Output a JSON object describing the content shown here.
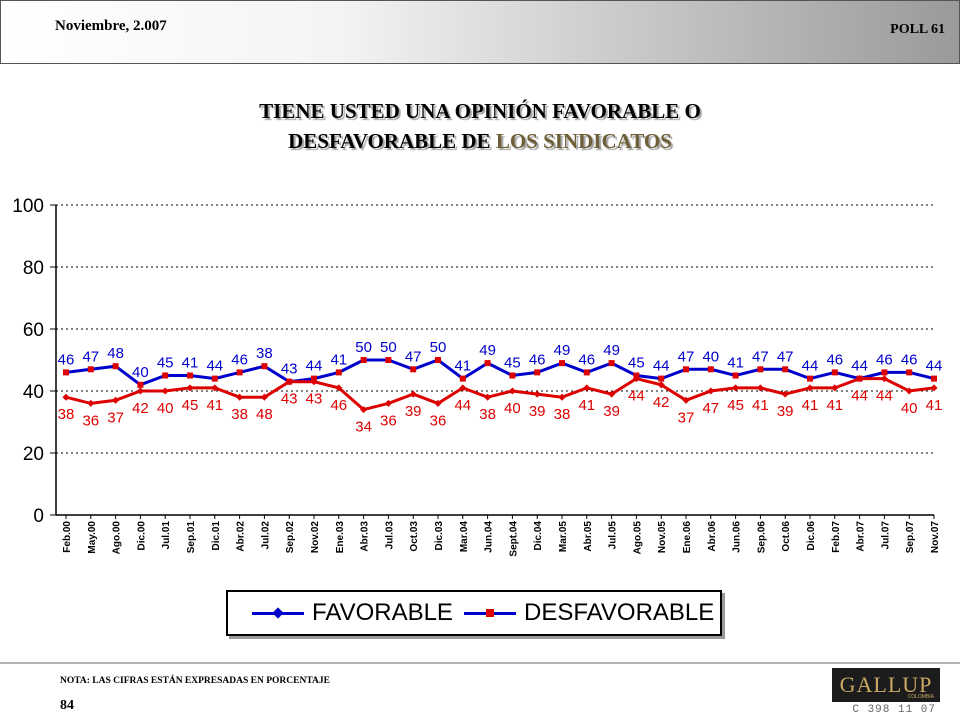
{
  "header": {
    "date": "Noviembre, 2.007",
    "poll": "POLL 61"
  },
  "title": {
    "line1": "TIENE USTED UNA OPINIÓN FAVORABLE O",
    "line2_prefix": "DESFAVORABLE DE ",
    "line2_highlight": "LOS SINDICATOS"
  },
  "chart_data": {
    "type": "line",
    "categories": [
      "Feb.00",
      "May.00",
      "Ago.00",
      "Dic.00",
      "Jul.01",
      "Sep.01",
      "Dic.01",
      "Abr.02",
      "Jul.02",
      "Sep.02",
      "Nov.02",
      "Ene.03",
      "Abr.03",
      "Jul.03",
      "Oct.03",
      "Dic.03",
      "Mar.04",
      "Jun.04",
      "Sept.04",
      "Dic.04",
      "Mar.05",
      "Abr.05",
      "Jul.05",
      "Ago.05",
      "Nov.05",
      "Ene.06",
      "Abr.06",
      "Jun.06",
      "Sep.06",
      "Oct.06",
      "Dic.06",
      "Feb.07",
      "Abr.07",
      "Jul.07",
      "Sep.07",
      "Nov.07"
    ],
    "series": [
      {
        "name": "FAVORABLE",
        "color": "#0000cc",
        "values": [
          38,
          36,
          37,
          40,
          40,
          41,
          41,
          38,
          38,
          43,
          43,
          41,
          34,
          36,
          39,
          36,
          41,
          38,
          40,
          39,
          38,
          41,
          39,
          44,
          42,
          37,
          40,
          41,
          41,
          39,
          41,
          41,
          44,
          44,
          40,
          41
        ]
      },
      {
        "name": "DESFAVORABLE",
        "color": "#dd0000",
        "values": [
          46,
          47,
          48,
          42,
          45,
          45,
          44,
          46,
          48,
          43,
          44,
          46,
          50,
          50,
          47,
          50,
          44,
          49,
          45,
          46,
          49,
          46,
          49,
          45,
          44,
          47,
          47,
          45,
          47,
          47,
          44,
          46,
          44,
          46,
          46,
          44
        ]
      }
    ],
    "ylim": [
      0,
      100
    ],
    "yticks": [
      0,
      20,
      40,
      60,
      80,
      100
    ],
    "grid": true,
    "legend": "bottom",
    "labels": {
      "blue": [
        46,
        47,
        48,
        40,
        45,
        41,
        44,
        46,
        38,
        43,
        44,
        41,
        50,
        50,
        47,
        50,
        41,
        49,
        45,
        46,
        49,
        46,
        49,
        45,
        44,
        47,
        40,
        41,
        47,
        47,
        44,
        46,
        44,
        46,
        46,
        44
      ],
      "red": [
        38,
        36,
        37,
        42,
        40,
        45,
        41,
        38,
        48,
        43,
        43,
        46,
        34,
        36,
        39,
        36,
        44,
        38,
        40,
        39,
        38,
        41,
        39,
        44,
        42,
        37,
        47,
        45,
        41,
        39,
        41,
        41,
        44,
        44,
        40,
        41
      ]
    }
  },
  "legend": {
    "favorable": "FAVORABLE",
    "desfavorable": "DESFAVORABLE"
  },
  "footer": {
    "note": "NOTA: LAS CIFRAS ESTÁN EXPRESADAS EN PORCENTAJE",
    "page": "84",
    "code": "C 398 11 07"
  },
  "logo": {
    "name": "GALLUP",
    "sub": "COLOMBIA"
  }
}
